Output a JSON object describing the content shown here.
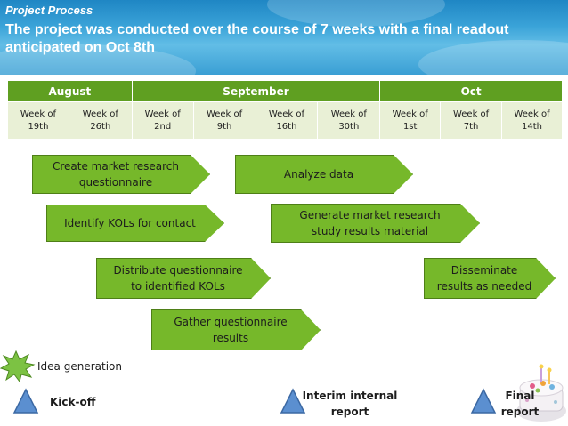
{
  "header": {
    "section_tag": "Project Process",
    "title": "The project was conducted over the course of 7 weeks with a final readout anticipated on Oct 8th"
  },
  "timeline": {
    "months": [
      "August",
      "September",
      "Oct"
    ],
    "weeks": [
      {
        "line1": "Week of",
        "line2": "19th"
      },
      {
        "line1": "Week of",
        "line2": "26th"
      },
      {
        "line1": "Week of",
        "line2": "2nd"
      },
      {
        "line1": "Week of",
        "line2": "9th"
      },
      {
        "line1": "Week of",
        "line2": "16th"
      },
      {
        "line1": "Week of",
        "line2": "30th"
      },
      {
        "line1": "Week of",
        "line2": "1st"
      },
      {
        "line1": "Week of",
        "line2": "7th"
      },
      {
        "line1": "Week of",
        "line2": "14th"
      }
    ]
  },
  "tasks": [
    {
      "line1": "Create market research",
      "line2": "questionnaire"
    },
    {
      "line1": "Analyze data",
      "line2": ""
    },
    {
      "line1": "Identify KOLs for contact",
      "line2": ""
    },
    {
      "line1": "Generate market research",
      "line2": "study results material"
    },
    {
      "line1": "Distribute questionnaire",
      "line2": "to identified KOLs"
    },
    {
      "line1": "Disseminate",
      "line2": "results as needed"
    },
    {
      "line1": "Gather questionnaire",
      "line2": "results"
    }
  ],
  "legend": {
    "idea_generation": "Idea generation",
    "kickoff": "Kick-off",
    "interim_line1": "Interim internal",
    "interim_line2": "report",
    "final_line1": "Final",
    "final_line2": "report"
  },
  "colors": {
    "header_blue": "#2f95cf",
    "month_green": "#5f9f21",
    "week_fill": "#e9f0d6",
    "task_green": "#76b82a",
    "triangle_blue": "#5b8fd0",
    "starburst_green": "#7cc243"
  }
}
